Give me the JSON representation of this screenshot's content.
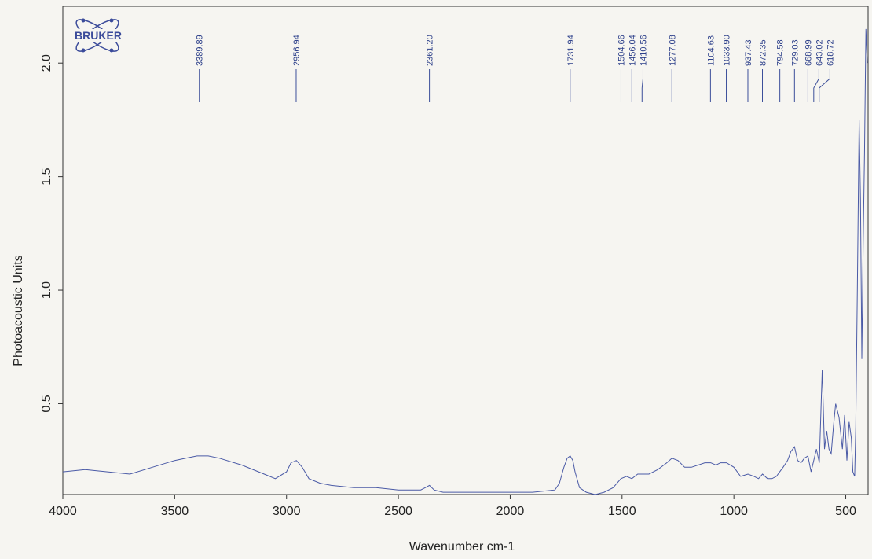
{
  "chart_data": {
    "type": "line",
    "title": "",
    "xlabel": "Wavenumber cm-1",
    "ylabel": "Photoacoustic Units",
    "xlim": [
      4000,
      400
    ],
    "ylim": [
      0.1,
      2.25
    ],
    "x_ticks": [
      4000,
      3500,
      3000,
      2500,
      2000,
      1500,
      1000,
      500
    ],
    "x_tick_labels": [
      "4000",
      "3500",
      "3000",
      "2500",
      "2000",
      "1500",
      "1000",
      "500"
    ],
    "y_ticks": [
      0.5,
      1.0,
      1.5,
      2.0
    ],
    "y_tick_labels": [
      "0.5",
      "1.0",
      "1.5",
      "2.0"
    ],
    "grid": false,
    "logo_text": "BRUKER",
    "peak_labels": [
      {
        "value": 3389.89,
        "label": "3389.89"
      },
      {
        "value": 2956.94,
        "label": "2956.94"
      },
      {
        "value": 2361.2,
        "label": "2361.20"
      },
      {
        "value": 1731.94,
        "label": "1731.94"
      },
      {
        "value": 1504.66,
        "label": "1504.66"
      },
      {
        "value": 1456.04,
        "label": "1456.04"
      },
      {
        "value": 1410.56,
        "label": "1410.56"
      },
      {
        "value": 1277.08,
        "label": "1277.08"
      },
      {
        "value": 1104.63,
        "label": "1104.63"
      },
      {
        "value": 1033.9,
        "label": "1033.90"
      },
      {
        "value": 937.43,
        "label": "937.43"
      },
      {
        "value": 872.35,
        "label": "872.35"
      },
      {
        "value": 794.58,
        "label": "794.58"
      },
      {
        "value": 729.03,
        "label": "729.03"
      },
      {
        "value": 668.99,
        "label": "668.99"
      },
      {
        "value": 643.02,
        "label": "643.02"
      },
      {
        "value": 618.72,
        "label": "618.72"
      }
    ],
    "series": [
      {
        "color": "#4a5aa6",
        "x": [
          4000,
          3900,
          3800,
          3700,
          3600,
          3500,
          3450,
          3400,
          3350,
          3300,
          3200,
          3100,
          3050,
          3000,
          2980,
          2956,
          2930,
          2900,
          2850,
          2800,
          2700,
          2600,
          2500,
          2400,
          2380,
          2361,
          2340,
          2300,
          2200,
          2100,
          2000,
          1900,
          1800,
          1780,
          1760,
          1745,
          1732,
          1720,
          1710,
          1690,
          1660,
          1620,
          1580,
          1540,
          1505,
          1480,
          1456,
          1430,
          1410,
          1380,
          1340,
          1300,
          1277,
          1250,
          1220,
          1190,
          1160,
          1130,
          1104,
          1080,
          1060,
          1033,
          1000,
          970,
          937,
          910,
          890,
          872,
          850,
          830,
          810,
          795,
          780,
          760,
          745,
          729,
          715,
          700,
          685,
          669,
          655,
          643,
          631,
          618,
          605,
          595,
          585,
          575,
          565,
          555,
          545,
          530,
          515,
          505,
          495,
          485,
          475,
          468,
          460,
          455,
          448,
          440,
          434,
          428,
          422,
          416,
          410,
          404
        ],
        "y": [
          0.2,
          0.21,
          0.2,
          0.19,
          0.22,
          0.25,
          0.26,
          0.27,
          0.27,
          0.26,
          0.23,
          0.19,
          0.17,
          0.2,
          0.24,
          0.25,
          0.22,
          0.17,
          0.15,
          0.14,
          0.13,
          0.13,
          0.12,
          0.12,
          0.13,
          0.14,
          0.12,
          0.11,
          0.11,
          0.11,
          0.11,
          0.11,
          0.12,
          0.15,
          0.22,
          0.26,
          0.27,
          0.25,
          0.2,
          0.13,
          0.11,
          0.1,
          0.11,
          0.13,
          0.17,
          0.18,
          0.17,
          0.19,
          0.19,
          0.19,
          0.21,
          0.24,
          0.26,
          0.25,
          0.22,
          0.22,
          0.23,
          0.24,
          0.24,
          0.23,
          0.24,
          0.24,
          0.22,
          0.18,
          0.19,
          0.18,
          0.17,
          0.19,
          0.17,
          0.17,
          0.18,
          0.2,
          0.22,
          0.25,
          0.29,
          0.31,
          0.25,
          0.24,
          0.26,
          0.27,
          0.2,
          0.25,
          0.3,
          0.24,
          0.65,
          0.3,
          0.38,
          0.3,
          0.28,
          0.4,
          0.5,
          0.44,
          0.3,
          0.45,
          0.25,
          0.42,
          0.35,
          0.2,
          0.18,
          0.4,
          1.0,
          1.75,
          1.4,
          0.7,
          1.2,
          1.6,
          2.15,
          2.0
        ]
      }
    ]
  }
}
